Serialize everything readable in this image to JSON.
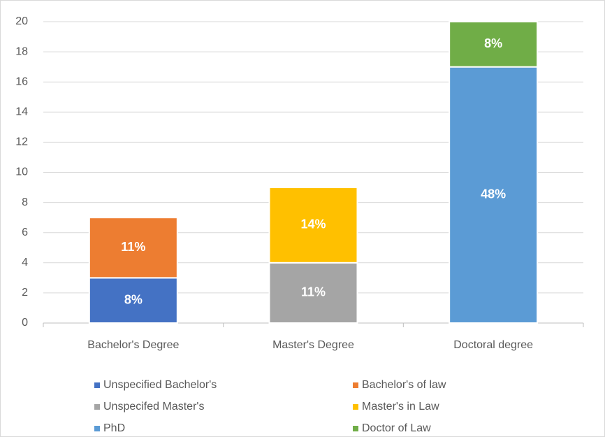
{
  "chart_data": {
    "type": "stacked_bar",
    "categories": [
      "Bachelor's Degree",
      "Master's Degree",
      "Doctoral degree"
    ],
    "series": [
      {
        "name": "Unspecified Bachelor's",
        "color": "#4472c4",
        "values": [
          3,
          null,
          null
        ],
        "value_labels": [
          "8%",
          null,
          null
        ]
      },
      {
        "name": "Bachelor's of law",
        "color": "#ed7d31",
        "values": [
          4,
          null,
          null
        ],
        "value_labels": [
          "11%",
          null,
          null
        ]
      },
      {
        "name": "Unspecifed Master's",
        "color": "#a5a5a5",
        "values": [
          null,
          4,
          null
        ],
        "value_labels": [
          null,
          "11%",
          null
        ]
      },
      {
        "name": "Master's in Law",
        "color": "#ffc000",
        "values": [
          null,
          5,
          null
        ],
        "value_labels": [
          null,
          "14%",
          null
        ]
      },
      {
        "name": "PhD",
        "color": "#5b9bd5",
        "values": [
          null,
          null,
          17
        ],
        "value_labels": [
          null,
          null,
          "48%"
        ]
      },
      {
        "name": "Doctor of Law",
        "color": "#70ad47",
        "values": [
          null,
          null,
          3
        ],
        "value_labels": [
          null,
          null,
          "8%"
        ]
      }
    ],
    "ylim": [
      0,
      20
    ],
    "yticks": [
      0,
      2,
      4,
      6,
      8,
      10,
      12,
      14,
      16,
      18,
      20
    ],
    "grid": true,
    "legend": "bottom"
  }
}
